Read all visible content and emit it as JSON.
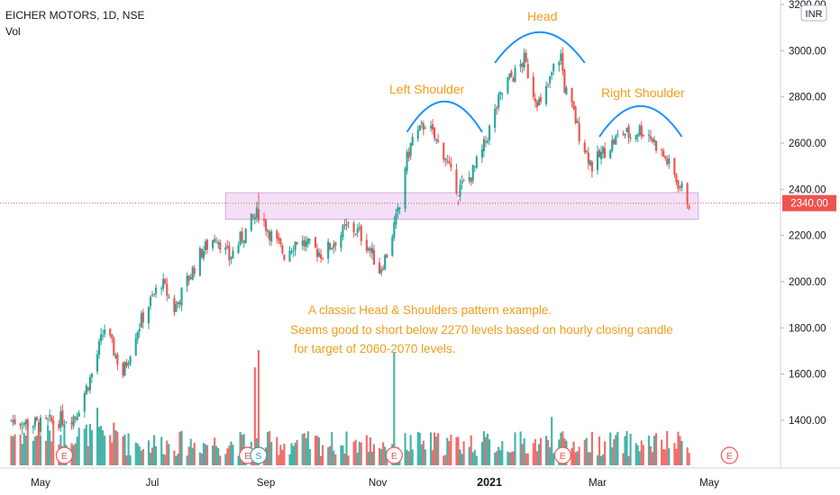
{
  "header": {
    "symbol": "EICHER MOTORS, 1D, NSE",
    "indicator": "Vol",
    "currency": "INR"
  },
  "colors": {
    "up": "#26a69a",
    "down": "#ef5350",
    "annotation": "#f29d1b",
    "arc": "#1e90ff",
    "zone": "#e9c6ef",
    "price_tag": "#ef5350",
    "event_marker": "#ef5350",
    "split_marker": "#26a69a"
  },
  "chart_data": {
    "type": "candlestick",
    "title": "EICHER MOTORS, 1D, NSE",
    "ylim": [
      1240,
      3200
    ],
    "yticks": [
      1400,
      1600,
      1800,
      2000,
      2200,
      2400,
      2600,
      2800,
      3000,
      3200
    ],
    "ytick_labels": [
      "1400.00",
      "1600.00",
      "1800.00",
      "2000.00",
      "2200.00",
      "2400.00",
      "2600.00",
      "2800.00",
      "3000.00",
      "3200.00"
    ],
    "xticks": [
      {
        "date": "2020-05-01",
        "label": "May",
        "bold": false
      },
      {
        "date": "2020-07-01",
        "label": "Jul",
        "bold": false
      },
      {
        "date": "2020-09-01",
        "label": "Sep",
        "bold": false
      },
      {
        "date": "2020-11-01",
        "label": "Nov",
        "bold": false
      },
      {
        "date": "2021-01-01",
        "label": "2021",
        "bold": true
      },
      {
        "date": "2021-03-01",
        "label": "Mar",
        "bold": false
      },
      {
        "date": "2021-05-01",
        "label": "May",
        "bold": false
      }
    ],
    "last_price": 2340,
    "last_price_label": "2340.00",
    "zone": {
      "low": 2270,
      "high": 2385,
      "start": "2020-08-10",
      "end": "2021-04-25"
    },
    "price_path": [
      {
        "date": "2020-04-15",
        "price": 1400
      },
      {
        "date": "2020-05-01",
        "price": 1380
      },
      {
        "date": "2020-05-20",
        "price": 1420
      },
      {
        "date": "2020-05-29",
        "price": 1600
      },
      {
        "date": "2020-06-05",
        "price": 1800
      },
      {
        "date": "2020-06-10",
        "price": 1700
      },
      {
        "date": "2020-06-15",
        "price": 1600
      },
      {
        "date": "2020-06-22",
        "price": 1780
      },
      {
        "date": "2020-06-29",
        "price": 1900
      },
      {
        "date": "2020-07-06",
        "price": 2000
      },
      {
        "date": "2020-07-13",
        "price": 1880
      },
      {
        "date": "2020-07-20",
        "price": 2000
      },
      {
        "date": "2020-07-28",
        "price": 2130
      },
      {
        "date": "2020-08-05",
        "price": 2200
      },
      {
        "date": "2020-08-12",
        "price": 2100
      },
      {
        "date": "2020-08-18",
        "price": 2180
      },
      {
        "date": "2020-08-24",
        "price": 2260
      },
      {
        "date": "2020-08-28",
        "price": 2300
      },
      {
        "date": "2020-09-04",
        "price": 2200
      },
      {
        "date": "2020-09-11",
        "price": 2120
      },
      {
        "date": "2020-09-18",
        "price": 2180
      },
      {
        "date": "2020-09-25",
        "price": 2150
      },
      {
        "date": "2020-10-02",
        "price": 2120
      },
      {
        "date": "2020-10-09",
        "price": 2180
      },
      {
        "date": "2020-10-16",
        "price": 2240
      },
      {
        "date": "2020-10-22",
        "price": 2210
      },
      {
        "date": "2020-10-27",
        "price": 2150
      },
      {
        "date": "2020-11-02",
        "price": 2050
      },
      {
        "date": "2020-11-06",
        "price": 2120
      },
      {
        "date": "2020-11-10",
        "price": 2240
      },
      {
        "date": "2020-11-13",
        "price": 2320
      },
      {
        "date": "2020-11-16",
        "price": 2500
      },
      {
        "date": "2020-11-20",
        "price": 2620
      },
      {
        "date": "2020-11-24",
        "price": 2650
      },
      {
        "date": "2020-11-27",
        "price": 2690
      },
      {
        "date": "2020-12-02",
        "price": 2620
      },
      {
        "date": "2020-12-07",
        "price": 2560
      },
      {
        "date": "2020-12-11",
        "price": 2460
      },
      {
        "date": "2020-12-15",
        "price": 2400
      },
      {
        "date": "2020-12-18",
        "price": 2420
      },
      {
        "date": "2020-12-22",
        "price": 2460
      },
      {
        "date": "2020-12-28",
        "price": 2560
      },
      {
        "date": "2021-01-01",
        "price": 2660
      },
      {
        "date": "2021-01-06",
        "price": 2780
      },
      {
        "date": "2021-01-11",
        "price": 2870
      },
      {
        "date": "2021-01-15",
        "price": 2900
      },
      {
        "date": "2021-01-20",
        "price": 2960
      },
      {
        "date": "2021-01-25",
        "price": 2820
      },
      {
        "date": "2021-01-29",
        "price": 2760
      },
      {
        "date": "2021-02-03",
        "price": 2870
      },
      {
        "date": "2021-02-06",
        "price": 2950
      },
      {
        "date": "2021-02-09",
        "price": 2980
      },
      {
        "date": "2021-02-11",
        "price": 2840
      },
      {
        "date": "2021-02-16",
        "price": 2730
      },
      {
        "date": "2021-02-19",
        "price": 2640
      },
      {
        "date": "2021-02-23",
        "price": 2560
      },
      {
        "date": "2021-02-26",
        "price": 2500
      },
      {
        "date": "2021-03-04",
        "price": 2560
      },
      {
        "date": "2021-03-09",
        "price": 2600
      },
      {
        "date": "2021-03-15",
        "price": 2650
      },
      {
        "date": "2021-03-19",
        "price": 2630
      },
      {
        "date": "2021-03-24",
        "price": 2660
      },
      {
        "date": "2021-03-29",
        "price": 2640
      },
      {
        "date": "2021-04-03",
        "price": 2580
      },
      {
        "date": "2021-04-08",
        "price": 2520
      },
      {
        "date": "2021-04-13",
        "price": 2440
      },
      {
        "date": "2021-04-16",
        "price": 2400
      },
      {
        "date": "2021-04-20",
        "price": 2340
      }
    ],
    "high_spikes": [
      {
        "date": "2020-08-28",
        "high": 2385
      },
      {
        "date": "2020-12-15",
        "high": 2330
      },
      {
        "date": "2021-02-06",
        "high": 3040
      }
    ],
    "volume_spikes": [
      {
        "date": "2020-08-26",
        "rel": 0.85,
        "up": false
      },
      {
        "date": "2020-08-28",
        "rel": 1.0,
        "up": false
      },
      {
        "date": "2020-11-10",
        "rel": 0.98,
        "up": true
      },
      {
        "date": "2021-02-04",
        "rel": 0.42,
        "up": true
      },
      {
        "date": "2020-06-01",
        "rel": 0.5,
        "up": true
      }
    ],
    "events": [
      {
        "date": "2020-05-14",
        "label": "E"
      },
      {
        "date": "2020-08-22",
        "label": "E"
      },
      {
        "date": "2020-08-28",
        "label": "S"
      },
      {
        "date": "2020-11-10",
        "label": "E"
      },
      {
        "date": "2021-02-10",
        "label": "E"
      },
      {
        "date": "2021-05-12",
        "label": "E"
      }
    ],
    "arcs": [
      {
        "label": "Left Shoulder",
        "start": "2020-11-17",
        "end": "2020-12-28",
        "peak": 2780
      },
      {
        "label": "Head",
        "start": "2021-01-04",
        "end": "2021-02-22",
        "peak": 3080
      },
      {
        "label": "Right Shoulder",
        "start": "2021-03-02",
        "end": "2021-04-16",
        "peak": 2760
      }
    ]
  },
  "annotations": {
    "left_shoulder": "Left Shoulder",
    "head": "Head",
    "right_shoulder": "Right Shoulder",
    "line1": "A classic Head & Shoulders pattern example.",
    "line2": "Seems good to short below 2270 levels based on hourly closing candle",
    "line3": "for target of 2060-2070 levels."
  }
}
